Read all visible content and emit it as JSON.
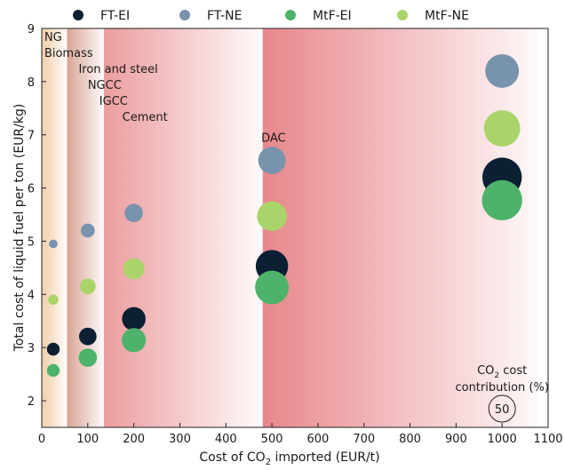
{
  "colors": {
    "FT-EI": "#0c1f33",
    "FT-NE": "#7893ac",
    "MtF-EI": "#4db36a",
    "MtF-NE": "#a8d46a"
  },
  "chart_data": {
    "type": "scatter",
    "xlabel_prefix": "Cost of CO",
    "xlabel_sub": "2",
    "xlabel_suffix": " imported (EUR/t)",
    "ylabel": "Total cost of liquid fuel per ton (EUR/kg)",
    "xlim": [
      0,
      1100
    ],
    "ylim": [
      1.5,
      9
    ],
    "xticks": [
      0,
      100,
      200,
      300,
      400,
      500,
      600,
      700,
      800,
      900,
      1000,
      1100
    ],
    "yticks": [
      2,
      3,
      4,
      5,
      6,
      7,
      8,
      9
    ],
    "legend": [
      "FT-EI",
      "FT-NE",
      "MtF-EI",
      "MtF-NE"
    ],
    "legend_position": "top",
    "regions": [
      {
        "name": "natural-gas-biomass",
        "from": 0,
        "to": 55,
        "color": "#f0cfa8"
      },
      {
        "name": "iron-steel-ngcc-igcc",
        "from": 55,
        "to": 135,
        "color": "#d8a595"
      },
      {
        "name": "cement",
        "from": 135,
        "to": 480,
        "color": "#ec9d9f"
      },
      {
        "name": "dac",
        "from": 480,
        "to": 1080,
        "color": "#e8878b"
      }
    ],
    "source_labels": [
      {
        "text": "NG",
        "x": 25,
        "y": 8.85
      },
      {
        "text": "Biomass",
        "x": 25,
        "y": 8.55
      },
      {
        "text": "Iron and steel",
        "x": 80,
        "y": 8.25
      },
      {
        "text": "NGCC",
        "x": 100,
        "y": 7.95
      },
      {
        "text": "IGCC",
        "x": 125,
        "y": 7.65
      },
      {
        "text": "Cement",
        "x": 175,
        "y": 7.35
      },
      {
        "text": "DAC",
        "x": 500,
        "y": 6.95
      }
    ],
    "series": [
      {
        "name": "FT-EI",
        "points": [
          {
            "x": 25,
            "y": 2.97,
            "size": 5
          },
          {
            "x": 100,
            "y": 3.21,
            "size": 10
          },
          {
            "x": 200,
            "y": 3.54,
            "size": 19
          },
          {
            "x": 500,
            "y": 4.53,
            "size": 37
          },
          {
            "x": 1000,
            "y": 6.2,
            "size": 56
          }
        ]
      },
      {
        "name": "FT-NE",
        "points": [
          {
            "x": 25,
            "y": 4.95,
            "size": 2
          },
          {
            "x": 100,
            "y": 5.2,
            "size": 6
          },
          {
            "x": 200,
            "y": 5.53,
            "size": 11
          },
          {
            "x": 500,
            "y": 6.52,
            "size": 26
          },
          {
            "x": 1000,
            "y": 8.2,
            "size": 40
          }
        ]
      },
      {
        "name": "MtF-EI",
        "points": [
          {
            "x": 25,
            "y": 2.57,
            "size": 5
          },
          {
            "x": 100,
            "y": 2.81,
            "size": 11
          },
          {
            "x": 200,
            "y": 3.14,
            "size": 20
          },
          {
            "x": 500,
            "y": 4.13,
            "size": 40
          },
          {
            "x": 1000,
            "y": 5.77,
            "size": 58
          }
        ]
      },
      {
        "name": "MtF-NE",
        "points": [
          {
            "x": 25,
            "y": 3.9,
            "size": 3
          },
          {
            "x": 100,
            "y": 4.15,
            "size": 8
          },
          {
            "x": 200,
            "y": 4.48,
            "size": 15
          },
          {
            "x": 500,
            "y": 5.47,
            "size": 31
          },
          {
            "x": 1000,
            "y": 7.12,
            "size": 47
          }
        ]
      }
    ],
    "size_key": {
      "title_prefix": "CO",
      "title_sub": "2",
      "title_suffix": " cost",
      "title_line2": "contribution (%)",
      "value": "50"
    }
  }
}
